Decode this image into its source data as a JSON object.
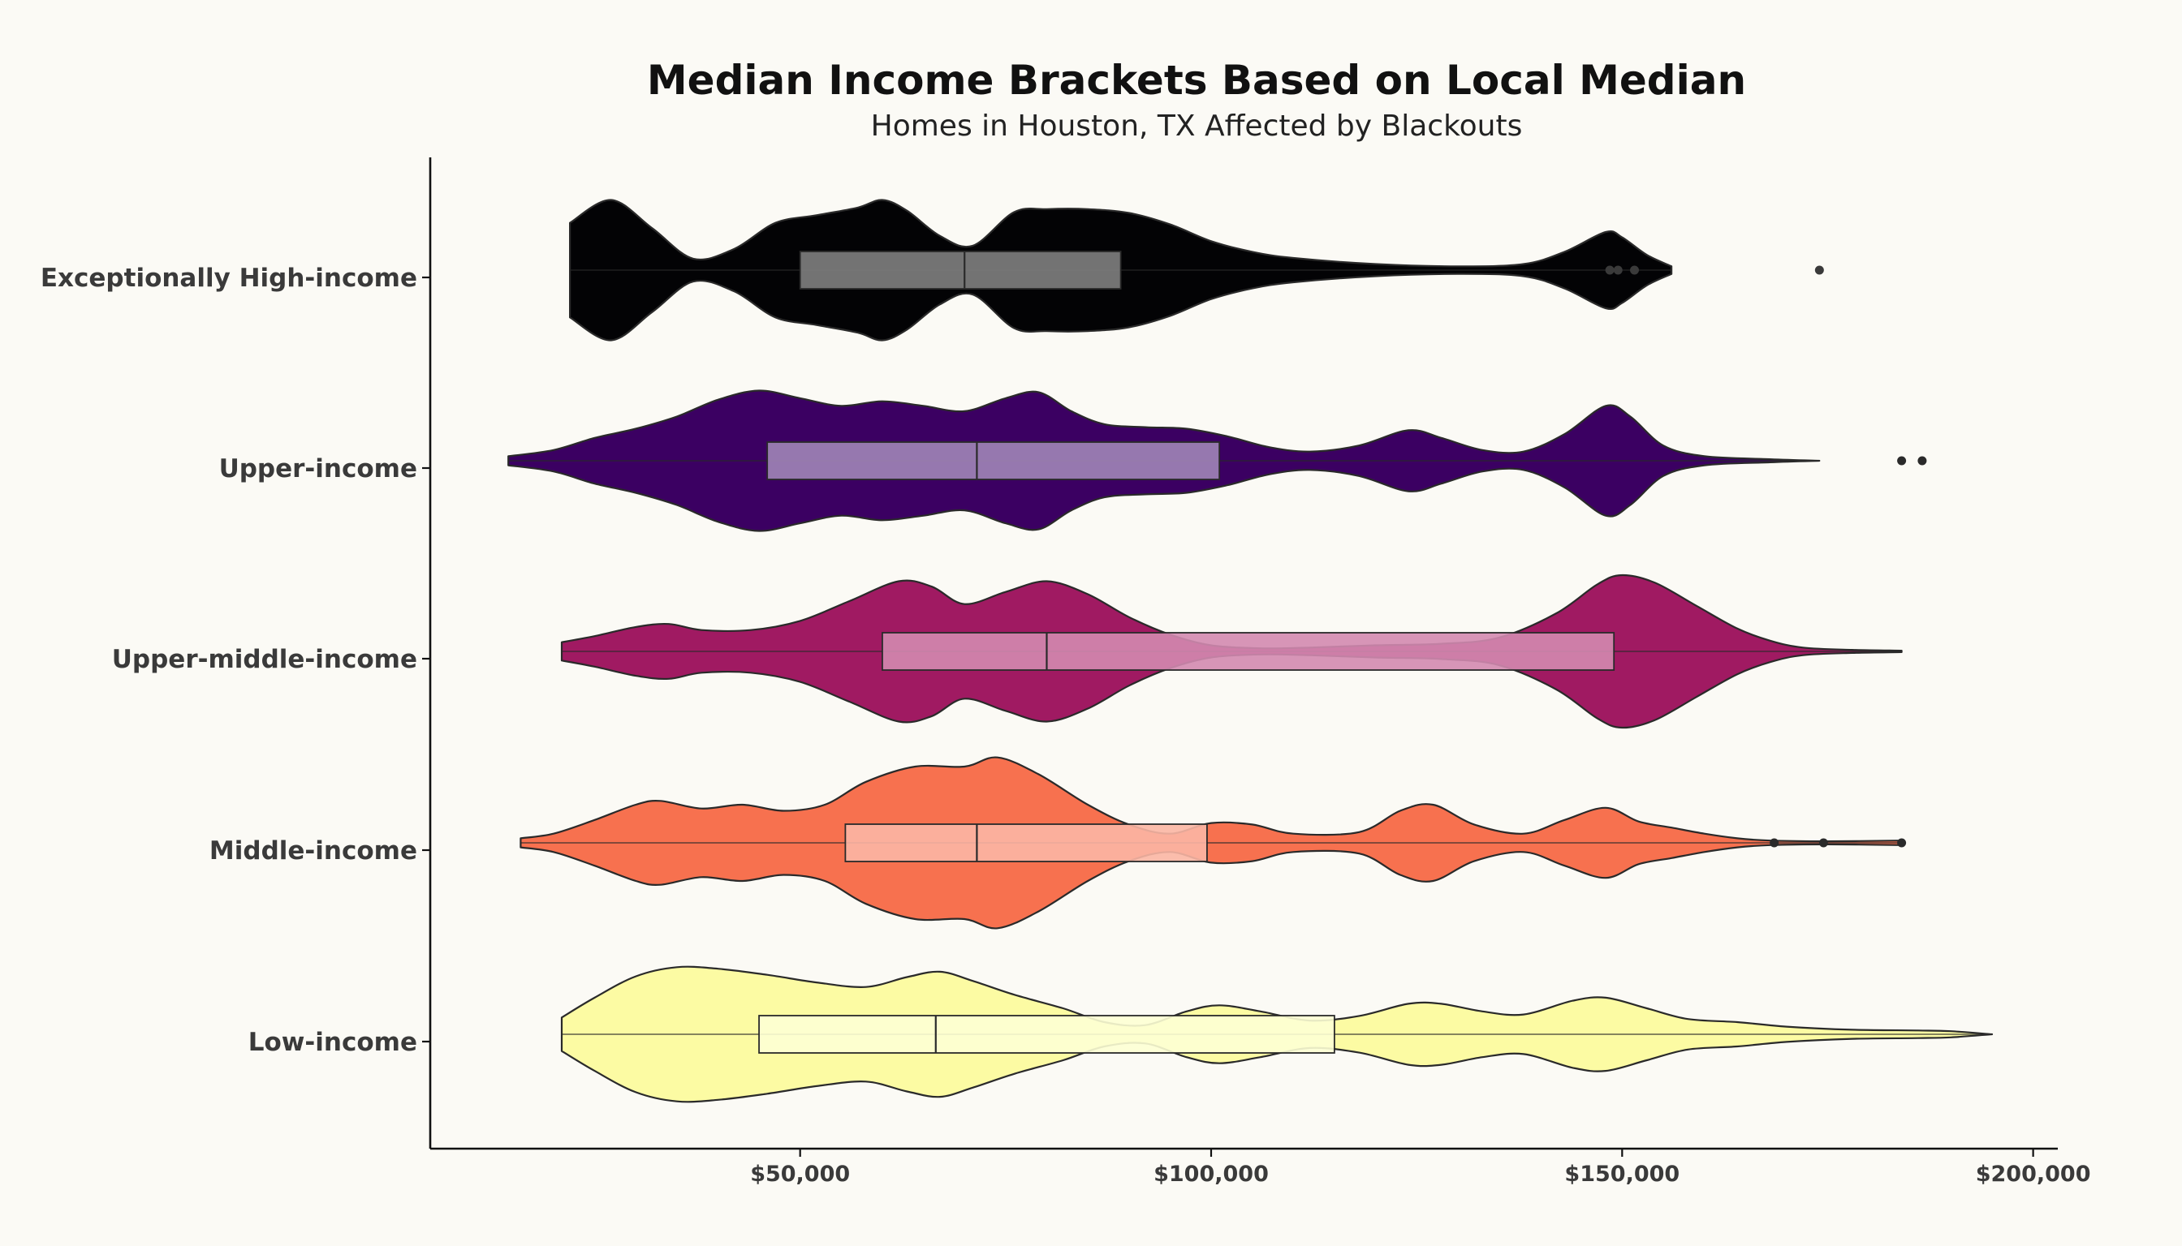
{
  "chart_data": {
    "type": "violin",
    "title": "Median Income Brackets Based on Local Median",
    "subtitle": "Homes in Houston, TX Affected by Blackouts",
    "xlabel": "",
    "ylabel": "",
    "x_range": [
      5000,
      203000
    ],
    "x_ticks": [
      50000,
      100000,
      150000,
      200000
    ],
    "x_tick_labels": [
      "$50,000",
      "$100,000",
      "$150,000",
      "$200,000"
    ],
    "grid": false,
    "categories": [
      "Exceptionally High-income",
      "Upper-income",
      "Upper-middle-income",
      "Middle-income",
      "Low-income"
    ],
    "series": [
      {
        "category": "Exceptionally High-income",
        "color": "#030305",
        "box_color": "#7f7f7f",
        "min": 22000,
        "max": 156000,
        "q1": 50000,
        "median": 70000,
        "q3": 89000,
        "outliers": [
          148500,
          149500,
          151500,
          174000
        ],
        "density": [
          [
            22000,
            0.62
          ],
          [
            27000,
            0.92
          ],
          [
            32000,
            0.55
          ],
          [
            37000,
            0.15
          ],
          [
            42000,
            0.28
          ],
          [
            47000,
            0.62
          ],
          [
            52000,
            0.72
          ],
          [
            57000,
            0.82
          ],
          [
            60000,
            0.92
          ],
          [
            63000,
            0.78
          ],
          [
            67000,
            0.45
          ],
          [
            71000,
            0.32
          ],
          [
            76000,
            0.76
          ],
          [
            80000,
            0.8
          ],
          [
            85000,
            0.8
          ],
          [
            90000,
            0.75
          ],
          [
            95000,
            0.6
          ],
          [
            100000,
            0.38
          ],
          [
            105000,
            0.24
          ],
          [
            110000,
            0.16
          ],
          [
            120000,
            0.08
          ],
          [
            130000,
            0.05
          ],
          [
            138000,
            0.08
          ],
          [
            143000,
            0.24
          ],
          [
            148000,
            0.5
          ],
          [
            150000,
            0.43
          ],
          [
            153000,
            0.2
          ],
          [
            156000,
            0.05
          ]
        ]
      },
      {
        "category": "Upper-income",
        "color": "#3b0062",
        "box_color": "#a185b8",
        "min": 14500,
        "max": 174000,
        "q1": 46000,
        "median": 71500,
        "q3": 101000,
        "outliers": [
          184000,
          186500
        ],
        "density": [
          [
            14500,
            0.06
          ],
          [
            20000,
            0.14
          ],
          [
            25000,
            0.3
          ],
          [
            30000,
            0.42
          ],
          [
            35000,
            0.58
          ],
          [
            40000,
            0.8
          ],
          [
            45000,
            0.92
          ],
          [
            50000,
            0.82
          ],
          [
            55000,
            0.72
          ],
          [
            60000,
            0.78
          ],
          [
            65000,
            0.72
          ],
          [
            70000,
            0.65
          ],
          [
            75000,
            0.82
          ],
          [
            79000,
            0.9
          ],
          [
            83000,
            0.65
          ],
          [
            87000,
            0.48
          ],
          [
            92000,
            0.44
          ],
          [
            97000,
            0.42
          ],
          [
            102000,
            0.32
          ],
          [
            107000,
            0.18
          ],
          [
            112000,
            0.12
          ],
          [
            118000,
            0.2
          ],
          [
            124000,
            0.4
          ],
          [
            128000,
            0.3
          ],
          [
            133000,
            0.14
          ],
          [
            138000,
            0.12
          ],
          [
            143000,
            0.35
          ],
          [
            148000,
            0.72
          ],
          [
            151000,
            0.58
          ],
          [
            155000,
            0.2
          ],
          [
            160000,
            0.06
          ],
          [
            168000,
            0.02
          ],
          [
            174000,
            0.0
          ]
        ]
      },
      {
        "category": "Upper-middle-income",
        "color": "#a01a62",
        "box_color": "#d389b0",
        "min": 21000,
        "max": 184000,
        "q1": 60000,
        "median": 80000,
        "q3": 149000,
        "outliers": [],
        "density": [
          [
            21000,
            0.12
          ],
          [
            25000,
            0.2
          ],
          [
            30000,
            0.32
          ],
          [
            34000,
            0.36
          ],
          [
            38000,
            0.28
          ],
          [
            44000,
            0.28
          ],
          [
            50000,
            0.4
          ],
          [
            56000,
            0.66
          ],
          [
            62000,
            0.92
          ],
          [
            66000,
            0.85
          ],
          [
            70000,
            0.62
          ],
          [
            75000,
            0.78
          ],
          [
            80000,
            0.92
          ],
          [
            85000,
            0.75
          ],
          [
            90000,
            0.45
          ],
          [
            95000,
            0.22
          ],
          [
            100000,
            0.08
          ],
          [
            106000,
            0.04
          ],
          [
            112000,
            0.05
          ],
          [
            120000,
            0.08
          ],
          [
            128000,
            0.1
          ],
          [
            135000,
            0.18
          ],
          [
            142000,
            0.5
          ],
          [
            147000,
            0.88
          ],
          [
            150000,
            1.0
          ],
          [
            154000,
            0.9
          ],
          [
            159000,
            0.6
          ],
          [
            164000,
            0.3
          ],
          [
            168000,
            0.14
          ],
          [
            172000,
            0.05
          ],
          [
            178000,
            0.02
          ],
          [
            184000,
            0.01
          ]
        ]
      },
      {
        "category": "Middle-income",
        "color": "#f7714f",
        "box_color": "#fbb6a4",
        "min": 16000,
        "max": 184000,
        "q1": 55500,
        "median": 71500,
        "q3": 99500,
        "outliers": [
          168500,
          174500,
          184000
        ],
        "density": [
          [
            16000,
            0.06
          ],
          [
            20000,
            0.12
          ],
          [
            25000,
            0.3
          ],
          [
            30000,
            0.5
          ],
          [
            33000,
            0.55
          ],
          [
            38000,
            0.45
          ],
          [
            43000,
            0.5
          ],
          [
            48000,
            0.42
          ],
          [
            53000,
            0.5
          ],
          [
            58000,
            0.8
          ],
          [
            64000,
            1.0
          ],
          [
            70000,
            1.0
          ],
          [
            74000,
            1.12
          ],
          [
            79000,
            0.9
          ],
          [
            85000,
            0.5
          ],
          [
            90000,
            0.24
          ],
          [
            95000,
            0.12
          ],
          [
            100000,
            0.26
          ],
          [
            105000,
            0.24
          ],
          [
            110000,
            0.12
          ],
          [
            118000,
            0.14
          ],
          [
            123000,
            0.42
          ],
          [
            127000,
            0.5
          ],
          [
            132000,
            0.24
          ],
          [
            138000,
            0.12
          ],
          [
            143000,
            0.3
          ],
          [
            148000,
            0.46
          ],
          [
            152000,
            0.28
          ],
          [
            156000,
            0.2
          ],
          [
            160000,
            0.12
          ],
          [
            164000,
            0.06
          ],
          [
            168000,
            0.03
          ],
          [
            175000,
            0.02
          ],
          [
            184000,
            0.03
          ]
        ]
      },
      {
        "category": "Low-income",
        "color": "#fcfba3",
        "box_color": "#fdffd4",
        "min": 21000,
        "max": 195000,
        "q1": 45000,
        "median": 66500,
        "q3": 115000,
        "outliers": [],
        "density": [
          [
            21000,
            0.22
          ],
          [
            25000,
            0.48
          ],
          [
            30000,
            0.76
          ],
          [
            35000,
            0.88
          ],
          [
            40000,
            0.86
          ],
          [
            46000,
            0.78
          ],
          [
            52000,
            0.68
          ],
          [
            58000,
            0.62
          ],
          [
            63000,
            0.75
          ],
          [
            67000,
            0.82
          ],
          [
            71000,
            0.7
          ],
          [
            76000,
            0.52
          ],
          [
            82000,
            0.34
          ],
          [
            87000,
            0.16
          ],
          [
            92000,
            0.12
          ],
          [
            97000,
            0.3
          ],
          [
            101000,
            0.38
          ],
          [
            106000,
            0.3
          ],
          [
            112000,
            0.18
          ],
          [
            118000,
            0.24
          ],
          [
            124000,
            0.4
          ],
          [
            128000,
            0.4
          ],
          [
            133000,
            0.3
          ],
          [
            138000,
            0.26
          ],
          [
            144000,
            0.44
          ],
          [
            148000,
            0.48
          ],
          [
            153000,
            0.34
          ],
          [
            158000,
            0.2
          ],
          [
            164000,
            0.16
          ],
          [
            170000,
            0.1
          ],
          [
            178000,
            0.06
          ],
          [
            186000,
            0.05
          ],
          [
            190000,
            0.04
          ],
          [
            195000,
            0.0
          ]
        ]
      }
    ]
  }
}
